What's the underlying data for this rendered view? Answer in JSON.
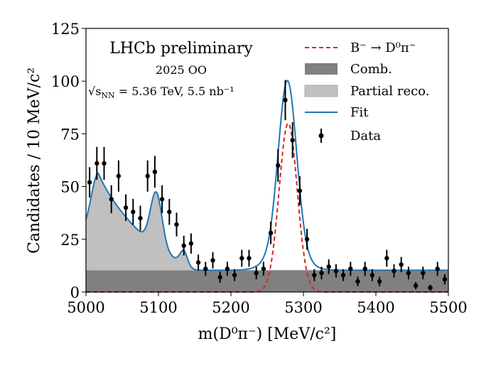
{
  "chart_data": {
    "type": "scatter",
    "title": "",
    "xlabel": "m(D⁰π⁻) [MeV/c²]",
    "ylabel": "Candidates / 10 MeV/c²",
    "xlim": [
      5000,
      5500
    ],
    "ylim": [
      0,
      125
    ],
    "xticks": [
      5000,
      5100,
      5200,
      5300,
      5400,
      5500
    ],
    "yticks": [
      0,
      25,
      50,
      75,
      100,
      125
    ],
    "grid": false,
    "legend_position": "top-right",
    "annotations": {
      "experiment": "LHCb preliminary",
      "dataset": "2025 OO",
      "energy_prefix": "√s",
      "energy_sub": "NN",
      "energy_rest": " = 5.36 TeV, 5.5 nb⁻¹"
    },
    "legend": [
      {
        "label": "B⁻ → D⁰π⁻",
        "style": "dashed-line",
        "color": "#d62728"
      },
      {
        "label": "Comb.",
        "style": "filled-box",
        "color": "#808080"
      },
      {
        "label": "Partial reco.",
        "style": "filled-box",
        "color": "#c0c0c0"
      },
      {
        "label": "Fit",
        "style": "line",
        "color": "#1f77b4"
      },
      {
        "label": "Data",
        "style": "errorbar-point",
        "color": "#000000"
      }
    ],
    "series": [
      {
        "name": "Data",
        "type": "errorbar",
        "x": [
          5005,
          5015,
          5025,
          5035,
          5045,
          5055,
          5065,
          5075,
          5085,
          5095,
          5105,
          5115,
          5125,
          5135,
          5145,
          5155,
          5165,
          5175,
          5185,
          5195,
          5205,
          5215,
          5225,
          5235,
          5245,
          5255,
          5265,
          5275,
          5285,
          5295,
          5305,
          5315,
          5325,
          5335,
          5345,
          5355,
          5365,
          5375,
          5385,
          5395,
          5405,
          5415,
          5425,
          5435,
          5445,
          5455,
          5465,
          5475,
          5485,
          5495
        ],
        "y": [
          52,
          61,
          61,
          44,
          55,
          40,
          38,
          35,
          55,
          57,
          44,
          38,
          32,
          22,
          23,
          14,
          11,
          15,
          7,
          11,
          8,
          16,
          16,
          9,
          11,
          28,
          60,
          91,
          72,
          48,
          25,
          8,
          9,
          12,
          10,
          8,
          11,
          5,
          11,
          8,
          5,
          16,
          10,
          13,
          9,
          3,
          9,
          2,
          11,
          6
        ]
      },
      {
        "name": "Comb.",
        "type": "area",
        "level": 10.3
      },
      {
        "name": "Partial reco.",
        "type": "area",
        "components": [
          {
            "mean": 5017,
            "sigma": 9,
            "amplitude": 22,
            "tail_right": 28
          },
          {
            "mean": 5097,
            "sigma": 8,
            "amplitude": 26
          },
          {
            "mean": 5135,
            "sigma": 5,
            "amplitude": 6
          }
        ],
        "endpoint": 5145
      },
      {
        "name": "B⁻ → D⁰π⁻",
        "type": "line",
        "mean": 5279,
        "sigma": 12.5,
        "peak": 80
      },
      {
        "name": "Fit",
        "type": "line",
        "peak": 90
      }
    ]
  },
  "colors": {
    "signal": "#d62728",
    "comb": "#808080",
    "partial": "#c0c0c0",
    "fit": "#1f77b4",
    "data": "#000000"
  }
}
